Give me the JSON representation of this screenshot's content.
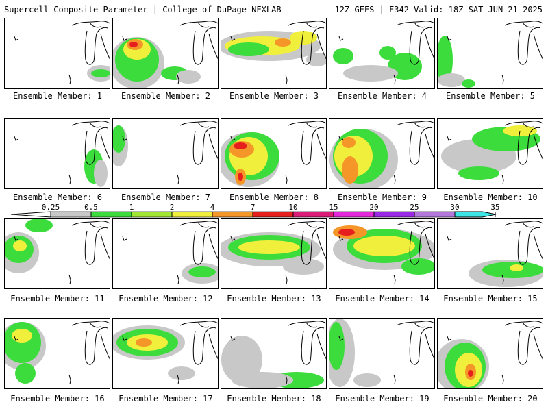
{
  "header": {
    "left_title": "Supercell Composite Parameter | College of DuPage NEXLAB",
    "right_title": "12Z GEFS | F342 Valid: 18Z SAT JUN 21 2025"
  },
  "panels": [
    {
      "label": "Ensemble Member: 1"
    },
    {
      "label": "Ensemble Member: 2"
    },
    {
      "label": "Ensemble Member: 3"
    },
    {
      "label": "Ensemble Member: 4"
    },
    {
      "label": "Ensemble Member: 5"
    },
    {
      "label": "Ensemble Member: 6"
    },
    {
      "label": "Ensemble Member: 7"
    },
    {
      "label": "Ensemble Member: 8"
    },
    {
      "label": "Ensemble Member: 9"
    },
    {
      "label": "Ensemble Member: 10"
    },
    {
      "label": "Ensemble Member: 11"
    },
    {
      "label": "Ensemble Member: 12"
    },
    {
      "label": "Ensemble Member: 13"
    },
    {
      "label": "Ensemble Member: 14"
    },
    {
      "label": "Ensemble Member: 15"
    },
    {
      "label": "Ensemble Member: 16"
    },
    {
      "label": "Ensemble Member: 17"
    },
    {
      "label": "Ensemble Member: 18"
    },
    {
      "label": "Ensemble Member: 19"
    },
    {
      "label": "Ensemble Member: 20"
    }
  ],
  "colorbar": {
    "ticks": [
      "0.25",
      "0.5",
      "1",
      "2",
      "4",
      "7",
      "10",
      "15",
      "20",
      "25",
      "30",
      "35"
    ],
    "colors": {
      "c0": "#c8c8c8",
      "c1": "#3cdc3c",
      "c2": "#a0e632",
      "c3": "#f0f03c",
      "c4": "#f59628",
      "c5": "#e61e1e",
      "c6": "#dc1e78",
      "c7": "#e628dc",
      "c8": "#9b28e6",
      "c9": "#b478dc",
      "c10": "#3ce6e6"
    }
  }
}
